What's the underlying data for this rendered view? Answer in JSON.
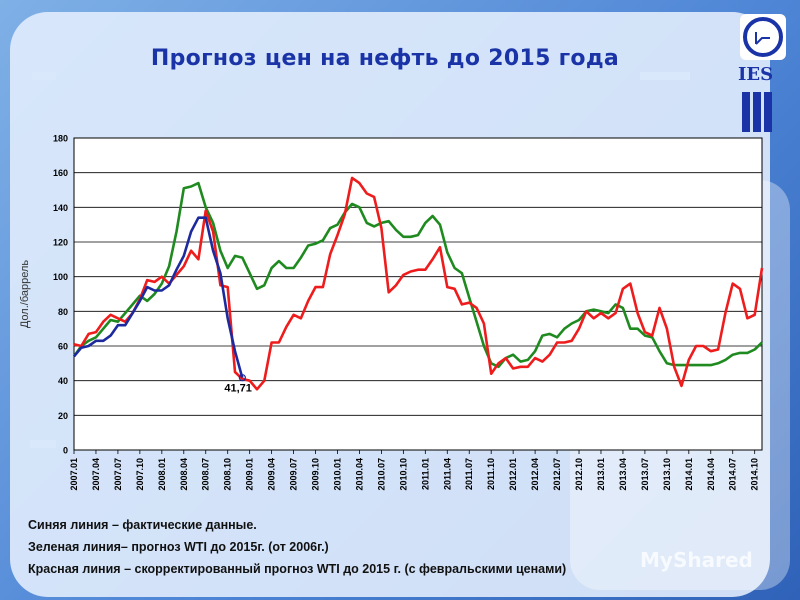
{
  "slide": {
    "title": "Прогноз цен на нефть до 2015 года",
    "logo_text": "IES",
    "legend_lines": [
      "Синяя линия – фактические данные.",
      "Зеленая линия– прогноз WTI до 2015г. (от 2006г.)",
      "Красная линия – скорректированный прогноз WTI до 2015 г. (с февральскими ценами)"
    ],
    "watermark": "MyShared"
  },
  "colors": {
    "title": "#1a34a8",
    "actual": "#1d2a9e",
    "forecast_2006": "#1f8a1f",
    "forecast_corrected": "#ee1c1c",
    "plot_background": "#ffffff"
  },
  "chart_data": {
    "type": "line",
    "ylabel": "Дол./баррель",
    "xlabel": "",
    "ylim": [
      0,
      180
    ],
    "yticks": [
      0,
      20,
      40,
      60,
      80,
      100,
      120,
      140,
      160,
      180
    ],
    "grid": true,
    "x_start": "2007.01",
    "x_step_months": 1,
    "x_tick_labels": [
      "2007.01",
      "2007.04",
      "2007.07",
      "2007.10",
      "2008.01",
      "2008.04",
      "2008.07",
      "2008.10",
      "2009.01",
      "2009.04",
      "2009.07",
      "2009.10",
      "2010.01",
      "2010.04",
      "2010.07",
      "2010.10",
      "2011.01",
      "2011.04",
      "2011.07",
      "2011.10",
      "2012.01",
      "2012.04",
      "2012.07",
      "2012.10",
      "2013.01",
      "2013.04",
      "2013.07",
      "2013.10",
      "2014.01",
      "2014.04",
      "2014.07",
      "2014.10"
    ],
    "annotation": {
      "text": "41,71",
      "x": "2009.01",
      "y": 41.71
    },
    "series": [
      {
        "key": "actual",
        "values": [
          54,
          59,
          60,
          63,
          63,
          66,
          72,
          72,
          79,
          86,
          94,
          92,
          92,
          95,
          104,
          112,
          126,
          134,
          134,
          115,
          102,
          76,
          57,
          41.71
        ]
      },
      {
        "key": "forecast_2006",
        "values": [
          54,
          60,
          63,
          65,
          70,
          75,
          74,
          79,
          84,
          89,
          86,
          90,
          96,
          106,
          126,
          151,
          152,
          154,
          140,
          131,
          115,
          105,
          112,
          111,
          102,
          93,
          95,
          105,
          109,
          105,
          105,
          111,
          118,
          119,
          121,
          128,
          130,
          137,
          142,
          140,
          131,
          129,
          131,
          132,
          127,
          123,
          123,
          124,
          131,
          135,
          130,
          114,
          105,
          102,
          88,
          74,
          60,
          50,
          48,
          53,
          55,
          51,
          52,
          57,
          66,
          67,
          65,
          70,
          73,
          75,
          80,
          81,
          80,
          79,
          84,
          82,
          70,
          70,
          66,
          65,
          57,
          50,
          49,
          49,
          49,
          49,
          49,
          49,
          50,
          52,
          55,
          56,
          56,
          58,
          62
        ]
      },
      {
        "key": "forecast_corrected",
        "values": [
          61,
          60,
          67,
          68,
          74,
          78,
          76,
          74,
          79,
          87,
          98,
          97,
          100,
          96,
          101,
          106,
          115,
          110,
          138,
          126,
          95,
          94,
          45,
          41,
          40,
          35,
          40,
          62,
          62,
          71,
          78,
          76,
          86,
          94,
          94,
          113,
          124,
          136,
          157,
          154,
          148,
          146,
          128,
          91,
          95,
          101,
          103,
          104,
          104,
          110,
          117,
          94,
          93,
          84,
          85,
          82,
          73,
          44,
          50,
          53,
          47,
          48,
          48,
          53,
          51,
          55,
          62,
          62,
          63,
          70,
          80,
          76,
          79,
          76,
          79,
          93,
          96,
          79,
          68,
          66,
          82,
          70,
          48,
          37,
          52,
          60,
          60,
          57,
          58,
          79,
          96,
          93,
          76,
          78,
          105
        ]
      }
    ]
  }
}
